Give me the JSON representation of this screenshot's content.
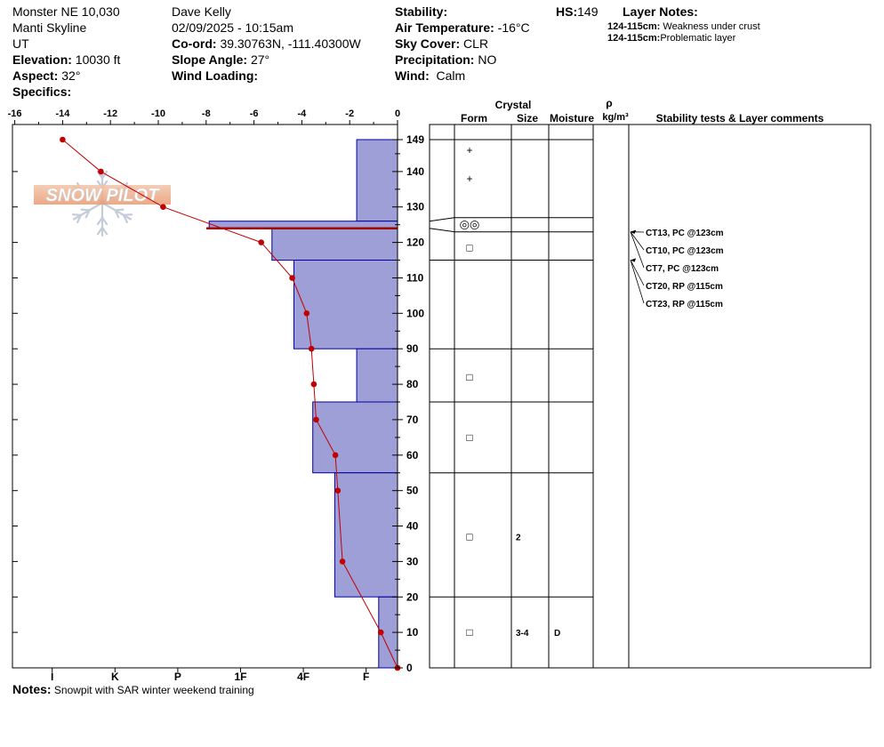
{
  "header": {
    "location": "Monster NE 10,030",
    "range": "Manti Skyline",
    "state": "UT",
    "elevation_label": "Elevation:",
    "elevation_value": "10030 ft",
    "aspect_label": "Aspect:",
    "aspect_value": "32°",
    "specifics_label": "Specifics:",
    "observer": "Dave Kelly",
    "datetime": "02/09/2025 - 10:15am",
    "coord_label": "Co-ord:",
    "coord_value": "39.30763N, -111.40300W",
    "slope_label": "Slope Angle:",
    "slope_value": "27°",
    "wind_loading_label": "Wind Loading:",
    "stability_label": "Stability:",
    "air_temp_label": "Air Temperature:",
    "air_temp_value": "-16°C",
    "sky_label": "Sky Cover:",
    "sky_value": "CLR",
    "precip_label": "Precipitation:",
    "precip_value": "NO",
    "wind_label": "Wind:",
    "wind_value": "Calm",
    "hs_label": "HS:",
    "hs_value": "149",
    "layer_notes_label": "Layer Notes:",
    "layer_notes": [
      {
        "range": "124-115cm:",
        "text": " Weakness under crust"
      },
      {
        "range": "124-115cm:",
        "text": "Problematic layer"
      }
    ]
  },
  "notes": {
    "label": "Notes:",
    "text": "Snowpit with SAR winter weekend training"
  },
  "logo_text": "SNOW PILOT",
  "table_headers": {
    "crystal": "Crystal",
    "form": "Form",
    "size": "Size",
    "moisture": "Moisture",
    "rho": "ρ",
    "density_unit": "kg/m³",
    "stability": "Stability tests & Layer comments"
  },
  "colors": {
    "hardness_fill": "#9f9fd8",
    "hardness_stroke": "#0000a0",
    "temp_line": "#c00000",
    "crust_line": "#a00000"
  },
  "chart_data": {
    "type": "line",
    "title": "",
    "temperature_axis": {
      "ticks": [
        -16,
        -14,
        -12,
        -10,
        -8,
        -6,
        -4,
        -2,
        0
      ],
      "range": [
        -16,
        0
      ]
    },
    "height_axis": {
      "ticks": [
        0,
        10,
        20,
        30,
        40,
        50,
        60,
        70,
        80,
        90,
        100,
        110,
        120,
        130,
        140,
        149
      ],
      "range": [
        0,
        149
      ]
    },
    "hardness_axis": {
      "labels": [
        "I",
        "K",
        "P",
        "1F",
        "4F",
        "F"
      ],
      "values": [
        5.5,
        4.5,
        3.5,
        2.5,
        1.5,
        0.5
      ]
    },
    "temperature_profile": [
      {
        "height": 149,
        "temp": -14.0
      },
      {
        "height": 140,
        "temp": -12.4
      },
      {
        "height": 130,
        "temp": -9.8
      },
      {
        "height": 120,
        "temp": -5.7
      },
      {
        "height": 110,
        "temp": -4.4
      },
      {
        "height": 100,
        "temp": -3.8
      },
      {
        "height": 90,
        "temp": -3.6
      },
      {
        "height": 80,
        "temp": -3.5
      },
      {
        "height": 70,
        "temp": -3.4
      },
      {
        "height": 60,
        "temp": -2.6
      },
      {
        "height": 50,
        "temp": -2.5
      },
      {
        "height": 30,
        "temp": -2.3
      },
      {
        "height": 10,
        "temp": -0.7
      },
      {
        "height": 0,
        "temp": 0.0
      }
    ],
    "hardness_layers": [
      {
        "top": 149,
        "bottom": 126,
        "hardness": 0.65
      },
      {
        "top": 126,
        "bottom": 124,
        "hardness": 3.0
      },
      {
        "top": 124,
        "bottom": 115,
        "hardness": 2.0
      },
      {
        "top": 115,
        "bottom": 90,
        "hardness": 1.65
      },
      {
        "top": 90,
        "bottom": 75,
        "hardness": 0.65
      },
      {
        "top": 75,
        "bottom": 55,
        "hardness": 1.35
      },
      {
        "top": 55,
        "bottom": 20,
        "hardness": 1.0
      },
      {
        "top": 20,
        "bottom": 0,
        "hardness": 0.3
      }
    ],
    "crust_height": 124,
    "layer_boundaries": [
      149,
      127,
      123,
      115,
      90,
      75,
      55,
      20,
      0
    ],
    "crystal_rows": [
      {
        "height": 146,
        "form": "+",
        "size": "",
        "moisture": ""
      },
      {
        "height": 138,
        "form": "+",
        "size": "",
        "moisture": ""
      },
      {
        "height": 125,
        "form": "◎◎",
        "size": "",
        "moisture": ""
      },
      {
        "height": 118.5,
        "form": "□",
        "size": "",
        "moisture": ""
      },
      {
        "height": 82,
        "form": "□",
        "size": "",
        "moisture": ""
      },
      {
        "height": 65,
        "form": "□",
        "size": "",
        "moisture": ""
      },
      {
        "height": 37,
        "form": "□",
        "size": "2",
        "moisture": ""
      },
      {
        "height": 10,
        "form": "□",
        "size": "3-4",
        "moisture": "D"
      }
    ],
    "stability_tests": [
      {
        "label": "CT13, PC @123cm",
        "height": 123
      },
      {
        "label": "CT10, PC @123cm",
        "height": 123
      },
      {
        "label": "CT7, PC @123cm",
        "height": 123
      },
      {
        "label": "CT20, RP @115cm",
        "height": 115
      },
      {
        "label": "CT23, RP @115cm",
        "height": 115
      }
    ]
  }
}
